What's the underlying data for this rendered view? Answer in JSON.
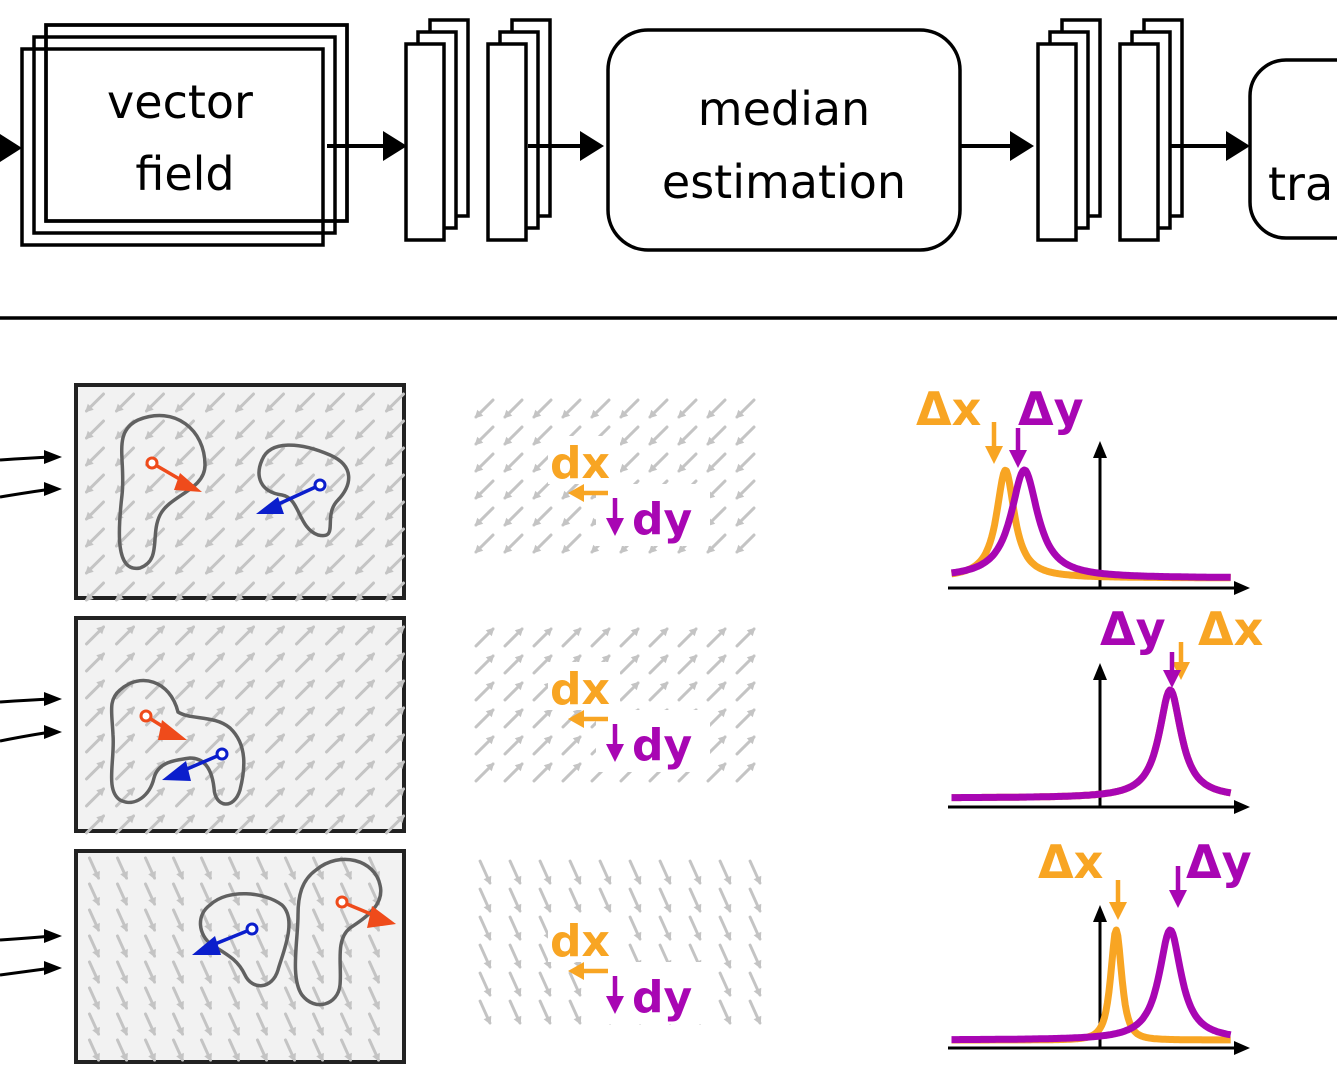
{
  "pipeline": {
    "vector_field_box": {
      "line1": "vector",
      "line2": "field"
    },
    "median_box": {
      "line1": "median",
      "line2": "estimation"
    },
    "partial_box": {
      "text": "tra"
    }
  },
  "panels": [
    {
      "field_direction": "down-left"
    },
    {
      "field_direction": "up-right"
    },
    {
      "field_direction": "down-right-steep"
    }
  ],
  "vector_labels": {
    "dx": "dx",
    "dy": "dy"
  },
  "histograms": [
    {
      "label_a": "Δx",
      "label_b": "Δy",
      "dx_peak": -0.35,
      "dy_peak": -0.28,
      "dx_width": 0.04,
      "dy_width": 0.06
    },
    {
      "label_a": "Δy",
      "label_b": "Δx",
      "dx_peak": 0.26,
      "dy_peak": 0.26,
      "dx_width": 0.05,
      "dy_width": 0.05
    },
    {
      "label_a": "Δx",
      "label_b": "Δy",
      "dx_peak": 0.06,
      "dy_peak": 0.26,
      "dx_width": 0.03,
      "dy_width": 0.05
    }
  ],
  "colors": {
    "dx": "#f8a523",
    "dy": "#a806b3",
    "red_arrow": "#ef4b1b",
    "blue_arrow": "#0b1ecc",
    "field_arrow": "#c4c4c4",
    "blob": "#616161"
  }
}
